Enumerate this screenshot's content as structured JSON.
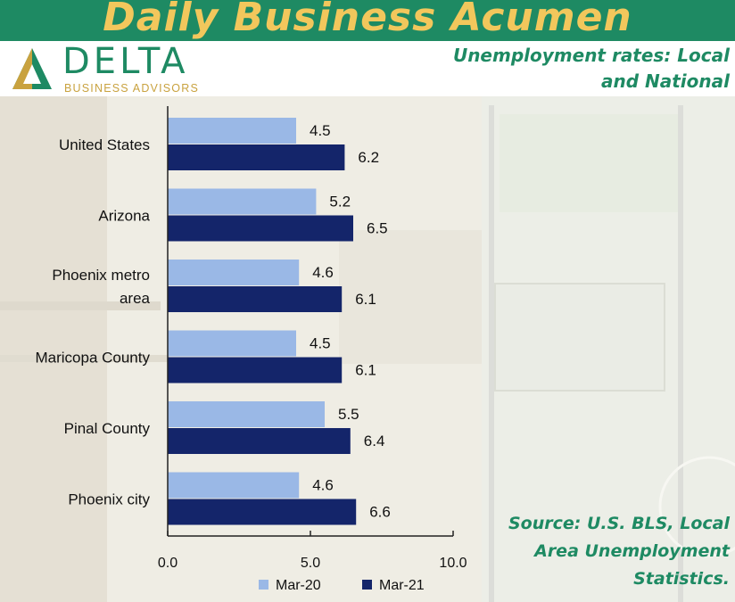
{
  "banner": {
    "title": "Daily Business Acumen"
  },
  "logo": {
    "word": "DELTA",
    "sub": "BUSINESS ADVISORS"
  },
  "subtitle": {
    "line1": "Unemployment rates: Local",
    "line2": "and National"
  },
  "source": {
    "line1": "Source: U.S. BLS, Local",
    "line2": "Area Unemployment",
    "line3": "Statistics."
  },
  "colors": {
    "banner": "#1e8a63",
    "banner_text": "#f2c75c",
    "mar20": "#9ab8e6",
    "mar21": "#14256a"
  },
  "chart_data": {
    "type": "bar",
    "orientation": "horizontal",
    "categories": [
      [
        "United States"
      ],
      [
        "Arizona"
      ],
      [
        "Phoenix metro",
        "area"
      ],
      [
        "Maricopa County"
      ],
      [
        "Pinal County"
      ],
      [
        "Phoenix city"
      ]
    ],
    "series": [
      {
        "name": "Mar-20",
        "color": "#9ab8e6",
        "values": [
          4.5,
          5.2,
          4.6,
          4.5,
          5.5,
          4.6
        ],
        "labels": [
          "4.5",
          "5.2",
          "4.6",
          "4.5",
          "5.5",
          "4.6"
        ]
      },
      {
        "name": "Mar-21",
        "color": "#14256a",
        "values": [
          6.2,
          6.5,
          6.1,
          6.1,
          6.4,
          6.6
        ],
        "labels": [
          "6.2",
          "6.5",
          "6.1",
          "6.1",
          "6.4",
          "6.6"
        ]
      }
    ],
    "xlim": [
      0,
      10
    ],
    "xticks": [
      0,
      5,
      10
    ],
    "xtick_labels": [
      "0.0",
      "5.0",
      "10.0"
    ],
    "legend": "bottom",
    "grid": false
  }
}
